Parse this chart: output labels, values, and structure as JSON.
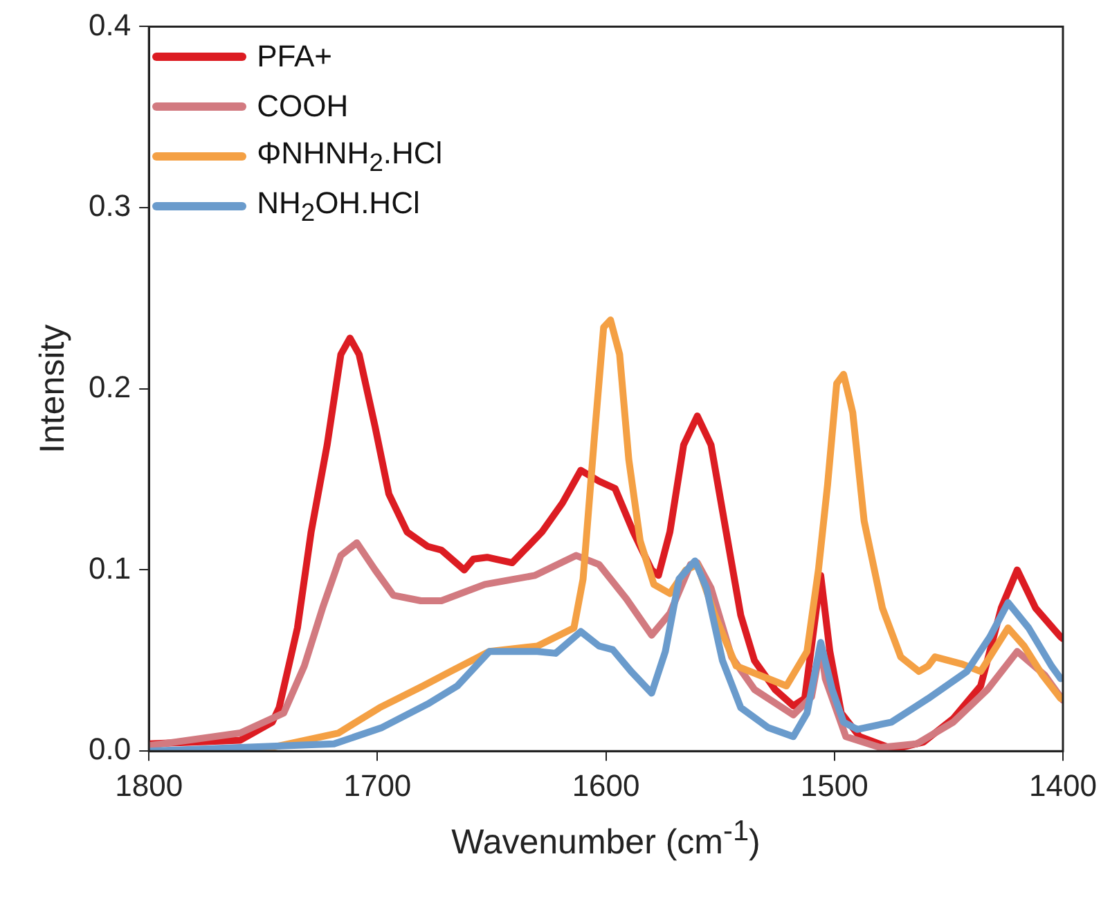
{
  "chart_data": {
    "type": "line",
    "xlabel": "Wavenumber (cm$^{-1}$)",
    "ylabel": "Intensity",
    "xlim": [
      1800,
      1400
    ],
    "xticks": [
      1800,
      1700,
      1600,
      1500,
      1400
    ],
    "ylim": [
      0,
      0.4
    ],
    "yticks": [
      {
        "value": 0,
        "label": "0.0"
      },
      0.1,
      0.2,
      0.3,
      0.4
    ],
    "grid": false,
    "legend": "top left",
    "marker": "none",
    "line_style": "solid",
    "series": [
      {
        "name": "PFA+",
        "color": "#dc1c22",
        "x": [
          1800,
          1760,
          1746,
          1743,
          1735,
          1729,
          1722,
          1716,
          1712,
          1708,
          1701,
          1695,
          1687,
          1678,
          1672,
          1662,
          1658,
          1652,
          1641,
          1628,
          1619,
          1611,
          1603,
          1596,
          1588,
          1580,
          1577,
          1572,
          1566,
          1560,
          1554,
          1546,
          1541,
          1535,
          1526,
          1518,
          1513,
          1506,
          1502,
          1497,
          1489,
          1474,
          1461,
          1448,
          1436,
          1427,
          1420,
          1412,
          1401,
          1400
        ],
        "values": [
          0.004,
          0.006,
          0.016,
          0.024,
          0.068,
          0.121,
          0.169,
          0.219,
          0.228,
          0.219,
          0.179,
          0.142,
          0.121,
          0.113,
          0.111,
          0.1,
          0.106,
          0.107,
          0.104,
          0.121,
          0.137,
          0.155,
          0.149,
          0.145,
          0.121,
          0.1,
          0.097,
          0.121,
          0.169,
          0.185,
          0.169,
          0.111,
          0.075,
          0.05,
          0.034,
          0.025,
          0.029,
          0.097,
          0.055,
          0.021,
          0.008,
          0.001,
          0.005,
          0.018,
          0.036,
          0.079,
          0.1,
          0.079,
          0.063,
          0.062
        ]
      },
      {
        "name": "COOH",
        "color": "#d27a80",
        "x": [
          1800,
          1760,
          1741,
          1732,
          1724,
          1716,
          1709,
          1701,
          1693,
          1681,
          1672,
          1653,
          1631,
          1613,
          1603,
          1591,
          1580,
          1572,
          1563,
          1560,
          1554,
          1545,
          1535,
          1518,
          1510,
          1506,
          1504,
          1495,
          1480,
          1464,
          1448,
          1433,
          1420,
          1408,
          1400
        ],
        "values": [
          0.003,
          0.01,
          0.021,
          0.047,
          0.079,
          0.108,
          0.115,
          0.1,
          0.086,
          0.083,
          0.083,
          0.092,
          0.097,
          0.108,
          0.103,
          0.084,
          0.064,
          0.076,
          0.103,
          0.104,
          0.09,
          0.052,
          0.034,
          0.02,
          0.03,
          0.058,
          0.04,
          0.008,
          0.002,
          0.004,
          0.016,
          0.034,
          0.055,
          0.042,
          0.028
        ]
      },
      {
        "name": "ΦNHNH$_{2}$.HCl",
        "color": "#f4a044",
        "x": [
          1800,
          1750,
          1717,
          1699,
          1680,
          1668,
          1651,
          1630,
          1614,
          1610,
          1605,
          1601,
          1598,
          1594,
          1590,
          1585,
          1579,
          1572,
          1565,
          1560,
          1552,
          1543,
          1529,
          1521,
          1512,
          1507,
          1503,
          1499,
          1496,
          1492,
          1487,
          1479,
          1471,
          1463,
          1459,
          1456,
          1444,
          1436,
          1429,
          1424,
          1417,
          1409,
          1401
        ],
        "values": [
          0,
          0.001,
          0.01,
          0.024,
          0.036,
          0.044,
          0.055,
          0.058,
          0.068,
          0.095,
          0.174,
          0.234,
          0.238,
          0.219,
          0.161,
          0.116,
          0.092,
          0.087,
          0.1,
          0.103,
          0.074,
          0.047,
          0.04,
          0.036,
          0.055,
          0.1,
          0.147,
          0.203,
          0.208,
          0.187,
          0.127,
          0.079,
          0.052,
          0.044,
          0.047,
          0.052,
          0.048,
          0.044,
          0.058,
          0.068,
          0.058,
          0.042,
          0.029
        ]
      },
      {
        "name": "NH$_{2}$OH.HCl",
        "color": "#6a9bcc",
        "x": [
          1800,
          1760,
          1719,
          1698,
          1678,
          1665,
          1651,
          1630,
          1622,
          1611,
          1603,
          1597,
          1589,
          1580,
          1574,
          1568,
          1561,
          1556,
          1549,
          1541,
          1529,
          1518,
          1512,
          1506,
          1501,
          1496,
          1490,
          1475,
          1459,
          1442,
          1432,
          1424,
          1415,
          1405,
          1401
        ],
        "values": [
          0,
          0.002,
          0.004,
          0.013,
          0.026,
          0.036,
          0.055,
          0.055,
          0.054,
          0.066,
          0.058,
          0.056,
          0.044,
          0.032,
          0.055,
          0.095,
          0.105,
          0.09,
          0.05,
          0.024,
          0.013,
          0.008,
          0.021,
          0.06,
          0.034,
          0.016,
          0.012,
          0.016,
          0.029,
          0.044,
          0.063,
          0.082,
          0.068,
          0.047,
          0.04
        ]
      }
    ]
  }
}
